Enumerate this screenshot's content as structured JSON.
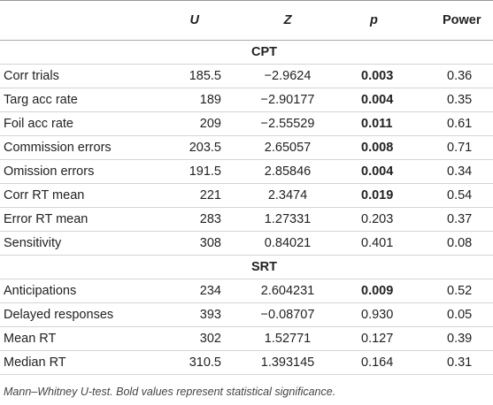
{
  "table": {
    "columns": [
      "U",
      "Z",
      "p",
      "Power"
    ],
    "sections": [
      {
        "title": "CPT",
        "rows": [
          {
            "label": "Corr trials",
            "U": "185.5",
            "Z": "−2.9624",
            "p": "0.003",
            "power": "0.36",
            "significant": true
          },
          {
            "label": "Targ acc rate",
            "U": "189",
            "Z": "−2.90177",
            "p": "0.004",
            "power": "0.35",
            "significant": true
          },
          {
            "label": "Foil acc rate",
            "U": "209",
            "Z": "−2.55529",
            "p": "0.011",
            "power": "0.61",
            "significant": true
          },
          {
            "label": "Commission errors",
            "U": "203.5",
            "Z": "2.65057",
            "p": "0.008",
            "power": "0.71",
            "significant": true
          },
          {
            "label": "Omission errors",
            "U": "191.5",
            "Z": "2.85846",
            "p": "0.004",
            "power": "0.34",
            "significant": true
          },
          {
            "label": "Corr RT mean",
            "U": "221",
            "Z": "2.3474",
            "p": "0.019",
            "power": "0.54",
            "significant": true
          },
          {
            "label": "Error RT mean",
            "U": "283",
            "Z": "1.27331",
            "p": "0.203",
            "power": "0.37",
            "significant": false
          },
          {
            "label": "Sensitivity",
            "U": "308",
            "Z": "0.84021",
            "p": "0.401",
            "power": "0.08",
            "significant": false
          }
        ]
      },
      {
        "title": "SRT",
        "rows": [
          {
            "label": "Anticipations",
            "U": "234",
            "Z": "2.604231",
            "p": "0.009",
            "power": "0.52",
            "significant": true
          },
          {
            "label": "Delayed responses",
            "U": "393",
            "Z": "−0.08707",
            "p": "0.930",
            "power": "0.05",
            "significant": false
          },
          {
            "label": "Mean RT",
            "U": "302",
            "Z": "1.52771",
            "p": "0.127",
            "power": "0.39",
            "significant": false
          },
          {
            "label": "Median RT",
            "U": "310.5",
            "Z": "1.393145",
            "p": "0.164",
            "power": "0.31",
            "significant": false
          }
        ]
      }
    ],
    "footnote": "Mann–Whitney U-test. Bold values represent statistical significance."
  }
}
